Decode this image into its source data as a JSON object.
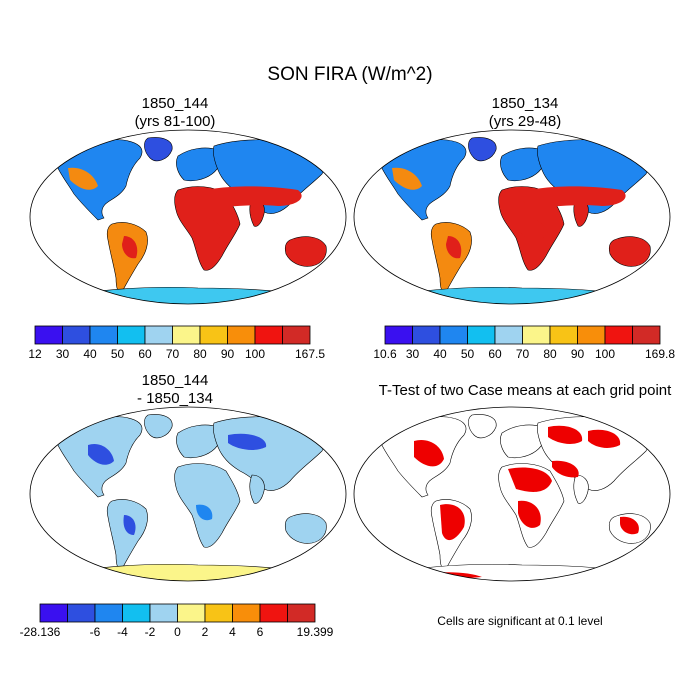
{
  "title": "SON FIRA (W/m^2)",
  "panels": [
    {
      "id": "case1",
      "title_line1": "1850_144",
      "title_line2": "(yrs 81-100)"
    },
    {
      "id": "case2",
      "title_line1": "1850_134",
      "title_line2": "(yrs 29-48)"
    },
    {
      "id": "diff",
      "title_line1": "1850_144",
      "title_line2": "- 1850_134"
    },
    {
      "id": "ttest",
      "title_line1": "T-Test of two Case means at each grid point",
      "title_line2": ""
    }
  ],
  "colorbars": [
    {
      "id": "case1",
      "colors": [
        "#3a10f0",
        "#2e4fe0",
        "#1f86f0",
        "#12bff0",
        "#9fd3f0",
        "#fbf58a",
        "#f8c316",
        "#f88e0a",
        "#f01410",
        "#d22a26"
      ],
      "labels": [
        "12",
        "30",
        "40",
        "50",
        "60",
        "70",
        "80",
        "90",
        "100",
        "",
        "167.5"
      ]
    },
    {
      "id": "case2",
      "colors": [
        "#3a10f0",
        "#2e4fe0",
        "#1f86f0",
        "#12bff0",
        "#9fd3f0",
        "#fbf58a",
        "#f8c316",
        "#f88e0a",
        "#f01410",
        "#d22a26"
      ],
      "labels": [
        "10.6",
        "30",
        "40",
        "50",
        "60",
        "70",
        "80",
        "90",
        "100",
        "",
        "169.8"
      ]
    },
    {
      "id": "diff",
      "colors": [
        "#3a10f0",
        "#2e4fe0",
        "#1f86f0",
        "#12bff0",
        "#9fd3f0",
        "#fbf58a",
        "#f8c316",
        "#f88e0a",
        "#f01410",
        "#d22a26"
      ],
      "labels": [
        "-28.136",
        "",
        "-6",
        "-4",
        "-2",
        "0",
        "2",
        "4",
        "6",
        "",
        "19.399"
      ]
    }
  ],
  "significance_note": "Cells are significant at 0.1 level",
  "map_colors": {
    "ocean": "#ffffff",
    "hot": "#e0201a",
    "warm": "#f48a10",
    "mild": "#fbd24a",
    "cool": "#1f86f0",
    "cold": "#2e4fe0",
    "antarctic": "#3ec8f0",
    "diff_land": "#9fd3f0",
    "diff_pos": "#fbf58a",
    "sig": "#ee0000"
  }
}
